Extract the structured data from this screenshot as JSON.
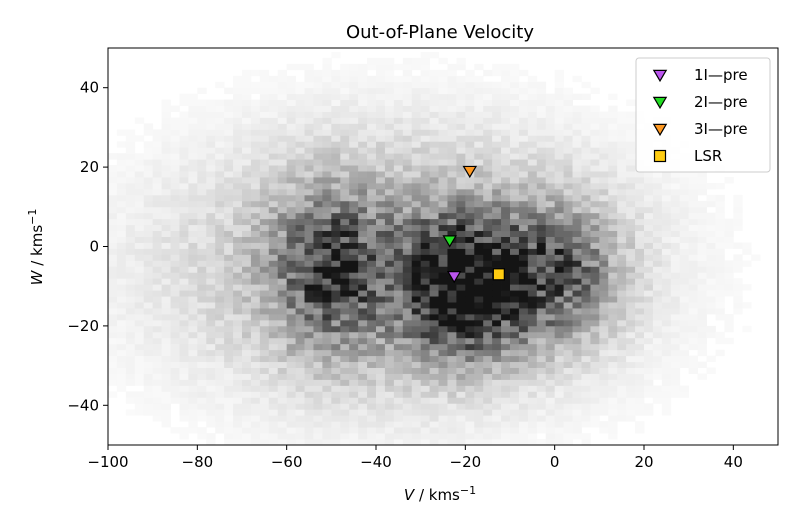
{
  "chart_data": {
    "type": "scatter",
    "title": "Out-of-Plane Velocity",
    "xlabel": {
      "var": "V",
      "unit": " / kms",
      "sup": "−1"
    },
    "ylabel": {
      "var": "W",
      "unit": " / kms",
      "sup": "−1"
    },
    "xlim": [
      -100,
      50
    ],
    "ylim": [
      -50,
      50
    ],
    "xticks": [
      -100,
      -80,
      -60,
      -40,
      -20,
      0,
      20,
      40
    ],
    "yticks": [
      -40,
      -20,
      0,
      20,
      40
    ],
    "xtick_labels": [
      "−100",
      "−80",
      "−60",
      "−40",
      "−20",
      "0",
      "20",
      "40"
    ],
    "ytick_labels": [
      "−40",
      "−20",
      "0",
      "20",
      "40"
    ],
    "grid": false,
    "legend_position": "top-right",
    "background": {
      "type": "2d-histogram",
      "colormap": "greys",
      "clusters": [
        {
          "v": -20,
          "w": -10,
          "sigma_v": 9,
          "sigma_w": 11,
          "weight": 1.0
        },
        {
          "v": -50,
          "w": -6,
          "sigma_v": 8,
          "sigma_w": 13,
          "weight": 0.55
        },
        {
          "v": 0,
          "w": -6,
          "sigma_v": 9,
          "sigma_w": 11,
          "weight": 0.55
        },
        {
          "v": -35,
          "w": -5,
          "sigma_v": 30,
          "sigma_w": 20,
          "weight": 0.35
        }
      ]
    },
    "series": [
      {
        "name": "1I—pre",
        "x": -22.5,
        "y": -7.5,
        "marker": "triangle-down",
        "color": "#bb55ee"
      },
      {
        "name": "2I—pre",
        "x": -23.5,
        "y": 1.5,
        "marker": "triangle-down",
        "color": "#22dd22"
      },
      {
        "name": "3I—pre",
        "x": -19,
        "y": 19,
        "marker": "triangle-down",
        "color": "#ff9922"
      },
      {
        "name": "LSR",
        "x": -12.5,
        "y": -7,
        "marker": "square",
        "color": "#ffcc11"
      }
    ]
  }
}
